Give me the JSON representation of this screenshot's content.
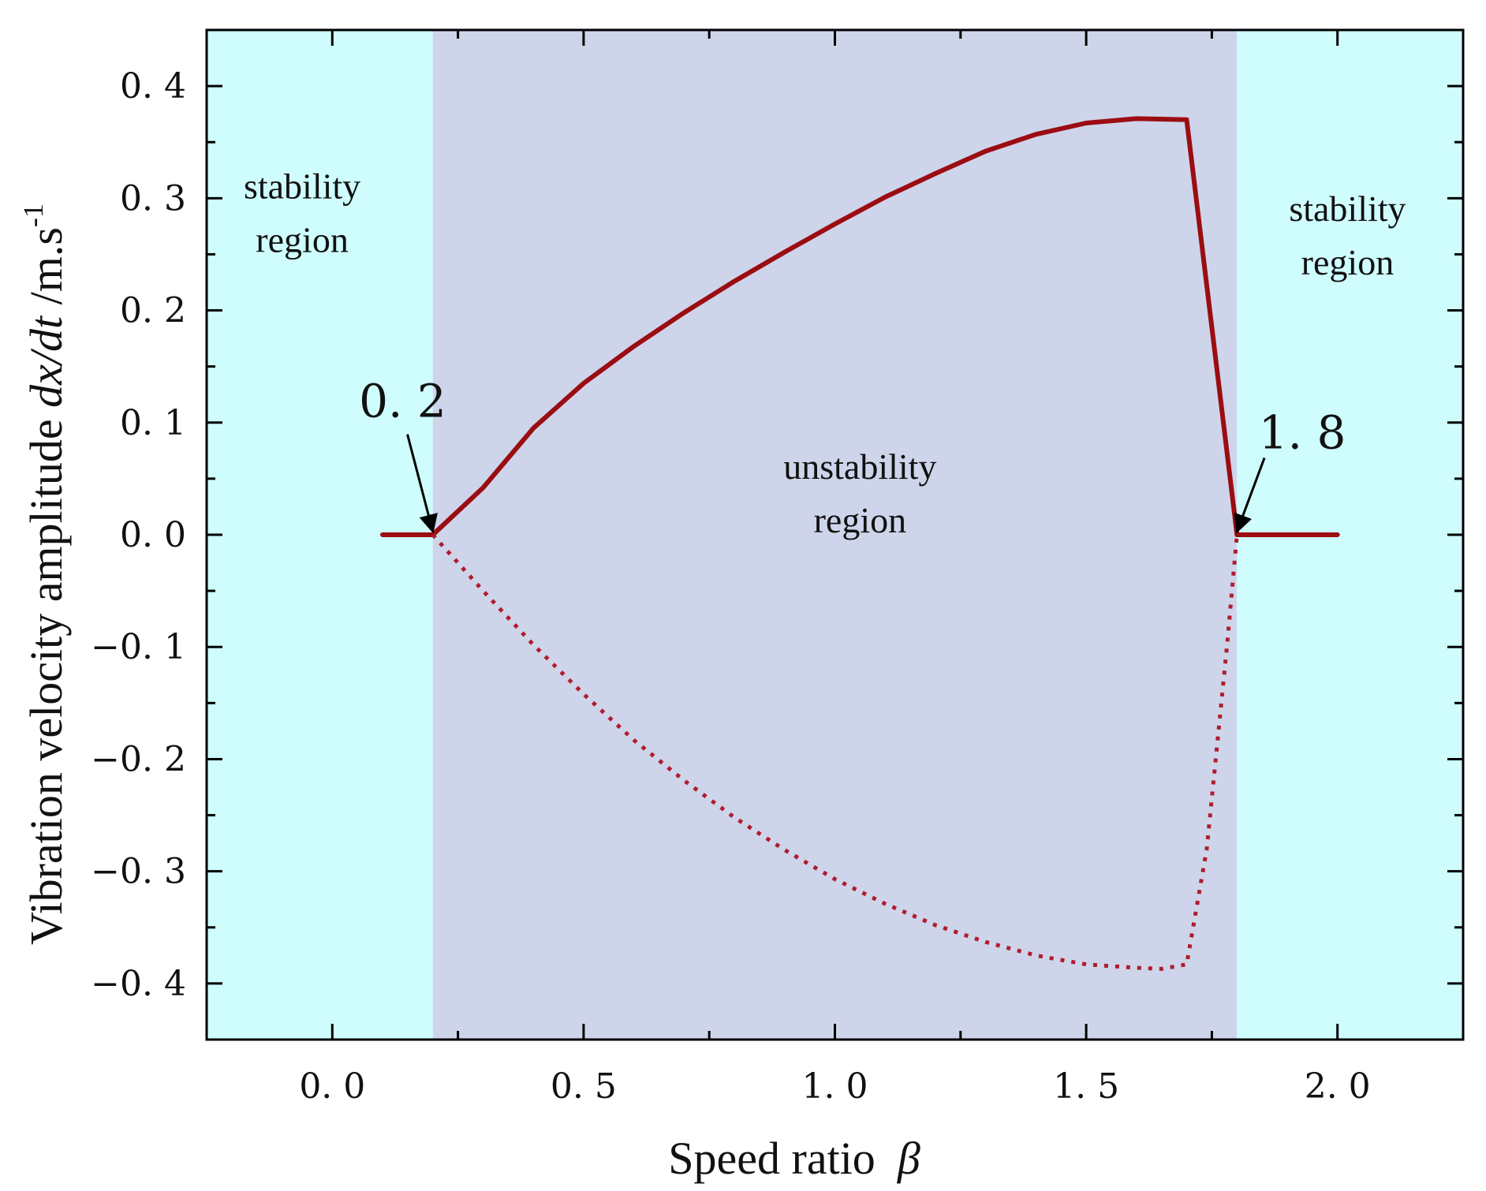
{
  "chart_data": {
    "type": "line",
    "xlabel": "Speed ratio",
    "xlabel_symbol": "β",
    "ylabel_prefix": "Vibration velocity amplitude ",
    "ylabel_var": "dx/dt",
    "ylabel_unit": " /m.s",
    "ylabel_exp": "-1",
    "xlim": [
      -0.25,
      2.25
    ],
    "ylim": [
      -0.45,
      0.45
    ],
    "x_ticks": [
      0.0,
      0.5,
      1.0,
      1.5,
      2.0
    ],
    "x_tick_labels": [
      "0. 0",
      "0. 5",
      "1. 0",
      "1. 5",
      "2. 0"
    ],
    "y_ticks": [
      0.4,
      0.3,
      0.2,
      0.1,
      0.0,
      -0.1,
      -0.2,
      -0.3,
      -0.4
    ],
    "y_tick_labels": [
      "0. 4",
      "0. 3",
      "0. 2",
      "0. 1",
      "0. 0",
      "−0. 1",
      "−0. 2",
      "−0. 3",
      "−0. 4"
    ],
    "regions": [
      {
        "name": "stability-left",
        "x_start": -0.25,
        "x_end": 0.2,
        "color": "#cffcfc",
        "label_lines": [
          "stability",
          "region"
        ]
      },
      {
        "name": "unstability",
        "x_start": 0.2,
        "x_end": 1.8,
        "color": "#ced5ea",
        "label_lines": [
          "unstability",
          "region"
        ]
      },
      {
        "name": "stability-right",
        "x_start": 1.8,
        "x_end": 2.25,
        "color": "#cffcfc",
        "label_lines": [
          "stability",
          "region"
        ]
      }
    ],
    "region_label_anchors": [
      {
        "x": -0.06,
        "y": 0.3
      },
      {
        "x": 1.05,
        "y": 0.05
      },
      {
        "x": 2.02,
        "y": 0.28
      }
    ],
    "series": [
      {
        "name": "upper amplitude",
        "style": "solid",
        "color": "#9b0d12",
        "x": [
          0.1,
          0.2,
          0.3,
          0.4,
          0.5,
          0.6,
          0.7,
          0.8,
          0.9,
          1.0,
          1.1,
          1.2,
          1.3,
          1.4,
          1.5,
          1.6,
          1.7,
          1.8,
          2.0
        ],
        "y": [
          0.0,
          0.0,
          0.042,
          0.095,
          0.135,
          0.168,
          0.198,
          0.226,
          0.252,
          0.277,
          0.301,
          0.322,
          0.342,
          0.357,
          0.367,
          0.371,
          0.37,
          0.0,
          0.0
        ]
      },
      {
        "name": "lower amplitude",
        "style": "dotted",
        "color": "#b01c2e",
        "x": [
          0.2,
          0.3,
          0.4,
          0.5,
          0.6,
          0.7,
          0.8,
          0.9,
          1.0,
          1.1,
          1.2,
          1.3,
          1.4,
          1.5,
          1.6,
          1.65,
          1.7,
          1.74,
          1.78,
          1.8
        ],
        "y": [
          0.0,
          -0.05,
          -0.098,
          -0.142,
          -0.183,
          -0.219,
          -0.252,
          -0.281,
          -0.307,
          -0.329,
          -0.348,
          -0.363,
          -0.375,
          -0.383,
          -0.386,
          -0.387,
          -0.383,
          -0.28,
          -0.1,
          0.0
        ]
      }
    ],
    "annotations": [
      {
        "text": "0. 2",
        "point": [
          0.2,
          0.0
        ],
        "text_pos": [
          0.14,
          0.105
        ]
      },
      {
        "text": "1. 8",
        "point": [
          1.8,
          0.0
        ],
        "text_pos": [
          1.93,
          0.077
        ]
      }
    ]
  }
}
